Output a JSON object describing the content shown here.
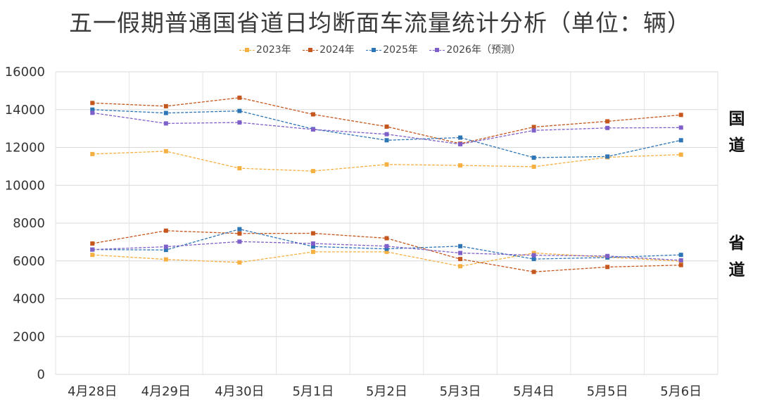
{
  "chart_data": {
    "type": "line",
    "title": "五一假期普通国省道日均断面车流量统计分析（单位：辆）",
    "categories": [
      "4月28日",
      "4月29日",
      "4月30日",
      "5月1日",
      "5月2日",
      "5月3日",
      "5月4日",
      "5月5日",
      "5月6日"
    ],
    "ylim": [
      0,
      16000
    ],
    "yticks": [
      0,
      2000,
      4000,
      6000,
      8000,
      10000,
      12000,
      14000,
      16000
    ],
    "grid": true,
    "legend_position": "top",
    "series": [
      {
        "name": "2023年",
        "color": "#f5b041",
        "group": "国道",
        "values": [
          11650,
          11800,
          10900,
          10750,
          11100,
          11050,
          10980,
          11480,
          11620
        ]
      },
      {
        "name": "2024年",
        "color": "#c5561e",
        "group": "国道",
        "values": [
          14350,
          14180,
          14630,
          13750,
          13100,
          12200,
          13080,
          13380,
          13720
        ]
      },
      {
        "name": "2025年",
        "color": "#2e75b6",
        "group": "国道",
        "values": [
          14000,
          13820,
          13930,
          12970,
          12380,
          12520,
          11460,
          11520,
          12380
        ]
      },
      {
        "name": "2026年（预测）",
        "color": "#7f60c8",
        "group": "国道",
        "values": [
          13830,
          13270,
          13320,
          12950,
          12700,
          12170,
          12900,
          13030,
          13050
        ]
      },
      {
        "name": "2023年",
        "color": "#f5b041",
        "group": "省道",
        "values": [
          6320,
          6080,
          5920,
          6480,
          6480,
          5720,
          6420,
          6200,
          5980
        ]
      },
      {
        "name": "2024年",
        "color": "#c5561e",
        "group": "省道",
        "values": [
          6920,
          7600,
          7450,
          7460,
          7200,
          6100,
          5420,
          5680,
          5780
        ]
      },
      {
        "name": "2025年",
        "color": "#2e75b6",
        "group": "省道",
        "values": [
          6600,
          6580,
          7680,
          6760,
          6640,
          6780,
          6100,
          6180,
          6320
        ]
      },
      {
        "name": "2026年（预测）",
        "color": "#7f60c8",
        "group": "省道",
        "values": [
          6600,
          6750,
          7020,
          6920,
          6780,
          6420,
          6300,
          6260,
          6030
        ]
      }
    ],
    "annotations": [
      {
        "text": "国",
        "group": "国道"
      },
      {
        "text": "道",
        "group": "国道"
      },
      {
        "text": "省",
        "group": "省道"
      },
      {
        "text": "道",
        "group": "省道"
      }
    ]
  },
  "legend": [
    {
      "label": "2023年",
      "color": "#f5b041"
    },
    {
      "label": "2024年",
      "color": "#c5561e"
    },
    {
      "label": "2025年",
      "color": "#2e75b6"
    },
    {
      "label": "2026年（预测）",
      "color": "#7f60c8"
    }
  ]
}
